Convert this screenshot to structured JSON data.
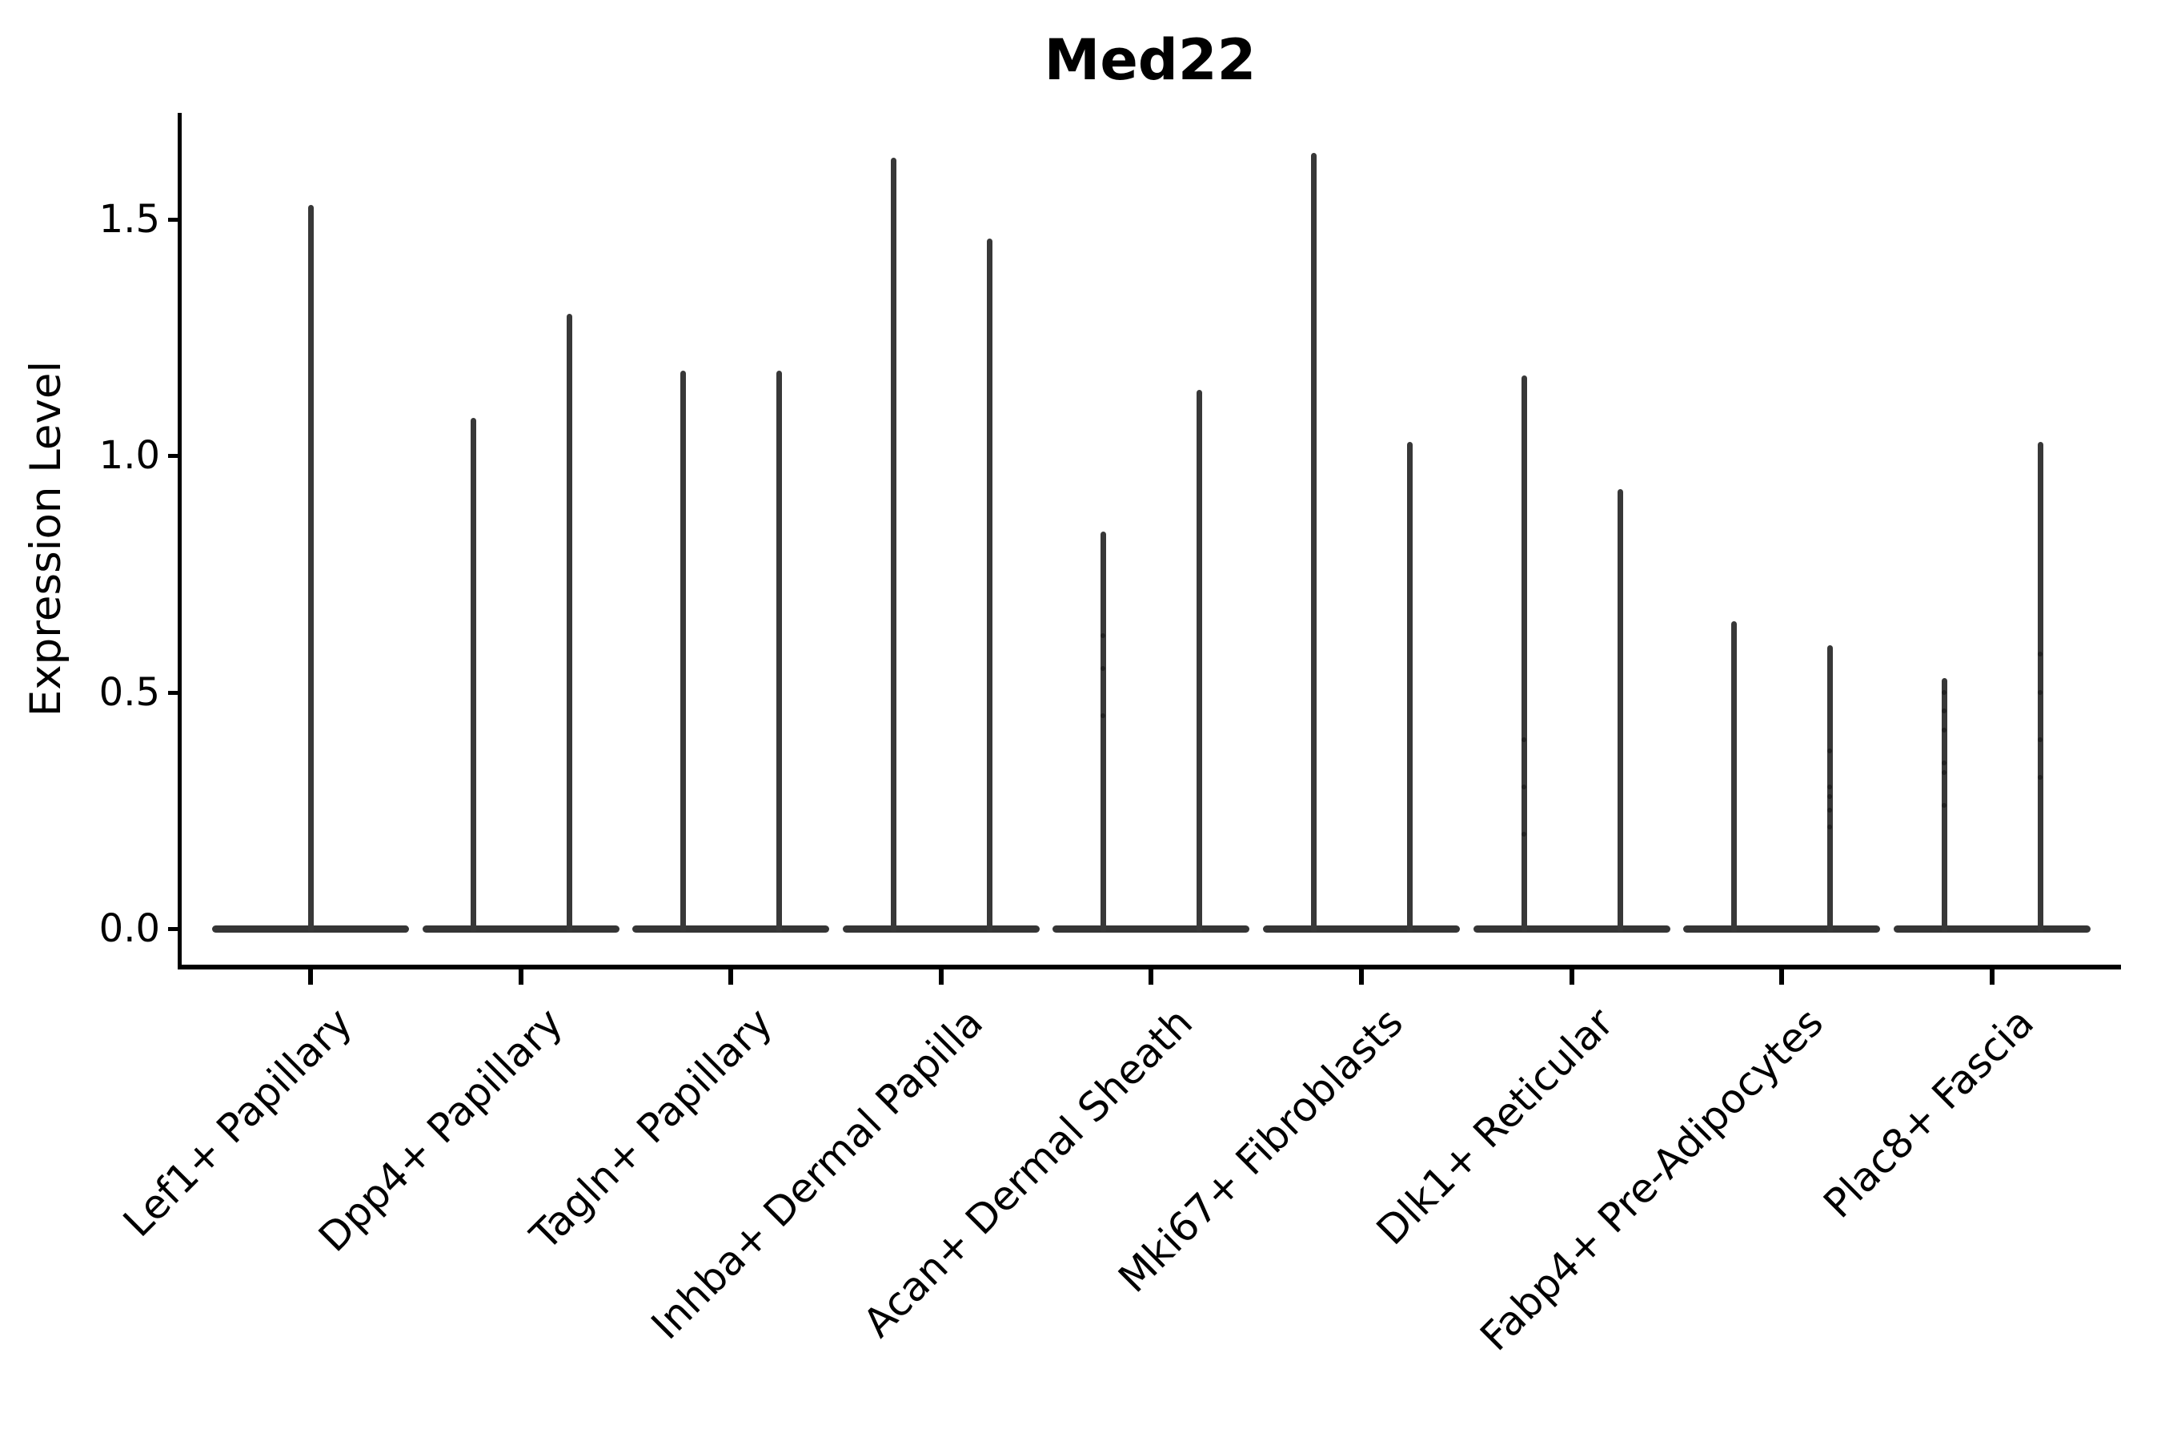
{
  "title": "Med22",
  "y_axis": {
    "label": "Expression Level",
    "ticks": [
      {
        "value": 0.0,
        "label": "0.0"
      },
      {
        "value": 0.5,
        "label": "0.5"
      },
      {
        "value": 1.0,
        "label": "1.0"
      },
      {
        "value": 1.5,
        "label": "1.5"
      }
    ]
  },
  "chart_data": {
    "type": "violin",
    "title": "Med22",
    "xlabel": "",
    "ylabel": "Expression Level",
    "ylim": [
      -0.08,
      1.8
    ],
    "grid": false,
    "legend": "none",
    "style": "thin spike violins with wide flat base at zero (most cells zero expression)",
    "categories": [
      "Lef1+ Papillary",
      "Dpp4+ Papillary",
      "Tagln+ Papillary",
      "Inhba+ Dermal Papilla",
      "Acan+ Dermal Sheath",
      "Mki67+ Fibroblasts",
      "Dlk1+ Reticular",
      "Fabp4+ Pre-Adipocytes",
      "Plac8+ Fascia"
    ],
    "series": [
      {
        "category": "Lef1+ Papillary",
        "violins": [
          {
            "slot": 0,
            "max": 1.53,
            "dots": []
          }
        ]
      },
      {
        "category": "Dpp4+ Papillary",
        "violins": [
          {
            "slot": -1,
            "max": 1.08,
            "dots": []
          },
          {
            "slot": 1,
            "max": 1.3,
            "dots": []
          }
        ]
      },
      {
        "category": "Tagln+ Papillary",
        "violins": [
          {
            "slot": -1,
            "max": 1.18,
            "dots": []
          },
          {
            "slot": 1,
            "max": 1.18,
            "dots": []
          }
        ]
      },
      {
        "category": "Inhba+ Dermal Papilla",
        "violins": [
          {
            "slot": -1,
            "max": 1.63,
            "dots": []
          },
          {
            "slot": 1,
            "max": 1.46,
            "dots": []
          }
        ]
      },
      {
        "category": "Acan+ Dermal Sheath",
        "violins": [
          {
            "slot": -1,
            "max": 0.84,
            "dots": [
              0.45,
              0.55,
              0.62
            ]
          },
          {
            "slot": 1,
            "max": 1.14,
            "dots": []
          }
        ]
      },
      {
        "category": "Mki67+ Fibroblasts",
        "violins": [
          {
            "slot": -1,
            "max": 1.64,
            "dots": []
          },
          {
            "slot": 1,
            "max": 1.03,
            "dots": []
          }
        ]
      },
      {
        "category": "Dlk1+ Reticular",
        "violins": [
          {
            "slot": -1,
            "max": 1.17,
            "dots": [
              0.2,
              0.3,
              0.4
            ]
          },
          {
            "slot": 1,
            "max": 0.93,
            "dots": []
          }
        ]
      },
      {
        "category": "Fabp4+ Pre-Adipocytes",
        "violins": [
          {
            "slot": -1,
            "max": 0.65,
            "dots": []
          },
          {
            "slot": 1,
            "max": 0.6,
            "dots": [
              0.215,
              0.25,
              0.28,
              0.3,
              0.375
            ]
          }
        ]
      },
      {
        "category": "Plac8+ Fascia",
        "violins": [
          {
            "slot": -1,
            "max": 0.53,
            "dots": [
              0.26,
              0.33,
              0.35,
              0.42,
              0.46,
              0.5
            ]
          },
          {
            "slot": 1,
            "max": 1.03,
            "dots": [
              0.32,
              0.4,
              0.5,
              0.58
            ]
          }
        ]
      }
    ]
  },
  "colors": {
    "background": "#ffffff",
    "axis": "#000000",
    "violin_stroke": "#383838",
    "text": "#000000"
  }
}
